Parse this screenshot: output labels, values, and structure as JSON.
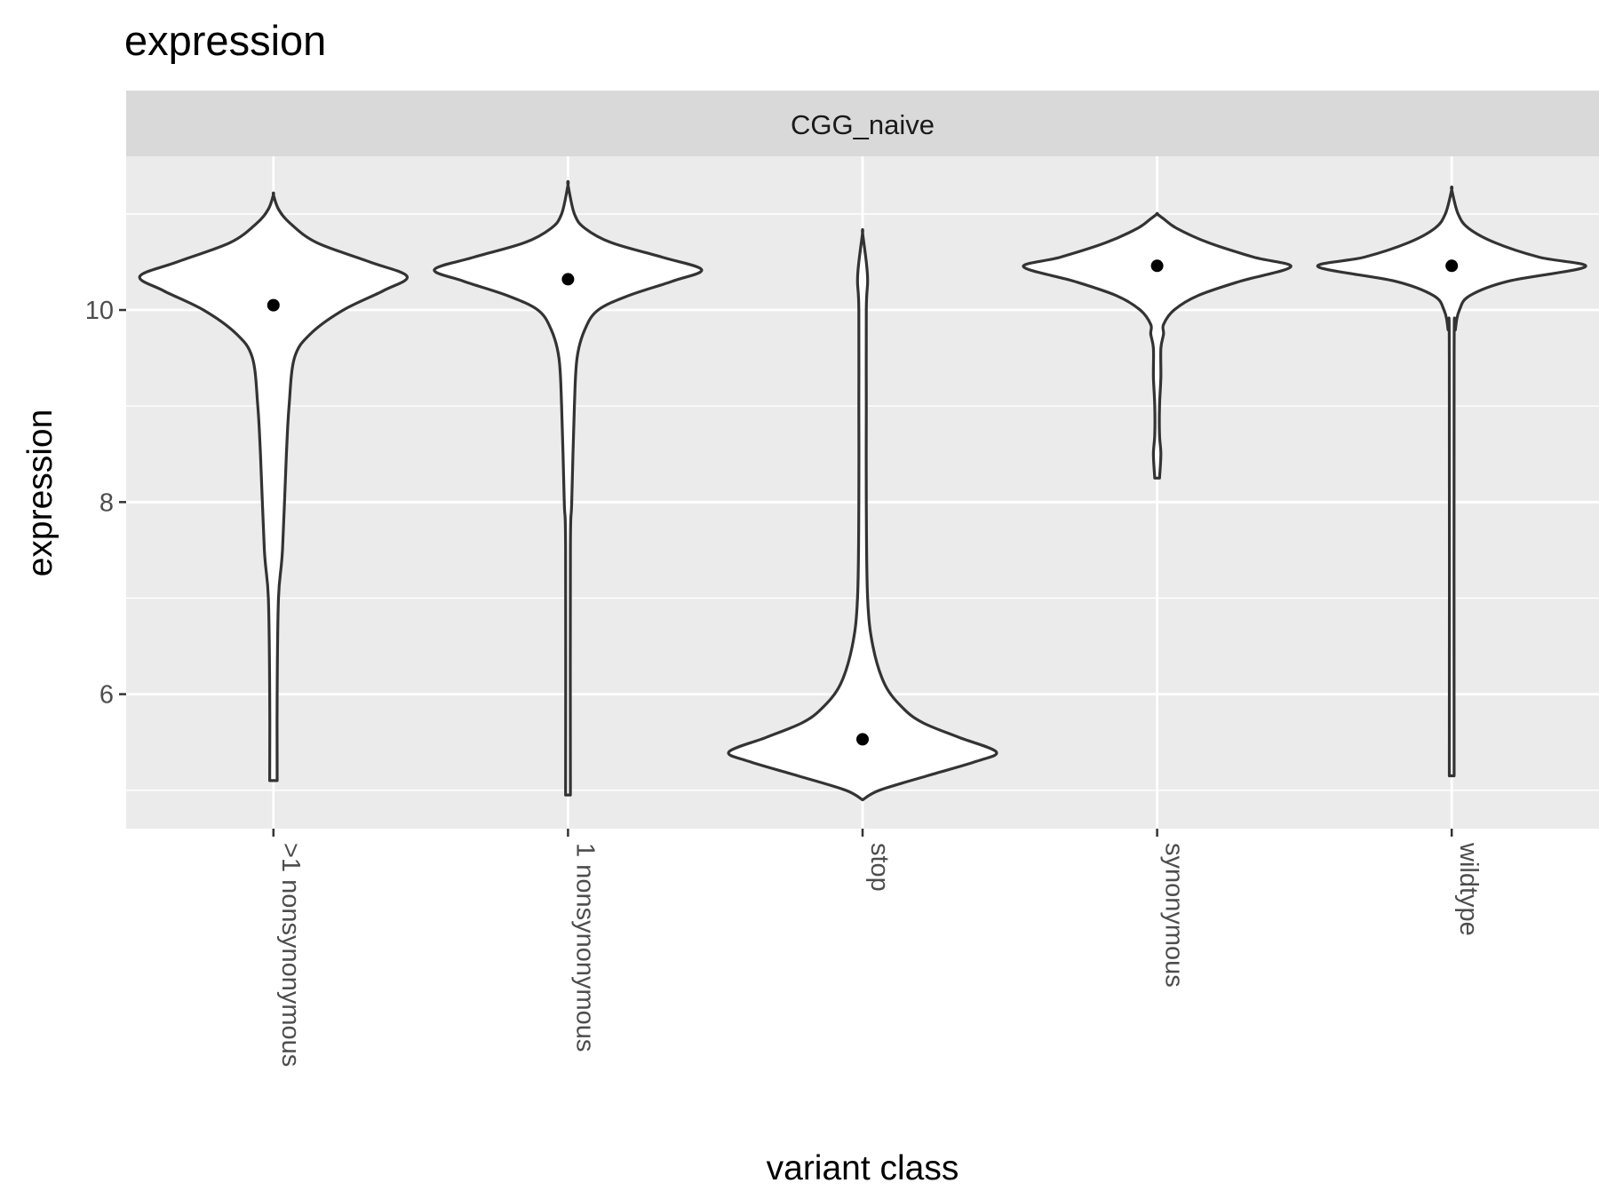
{
  "chart_data": {
    "type": "violin",
    "title": "expression",
    "facet_label": "CGG_naive",
    "xlabel": "variant class",
    "ylabel": "expression",
    "ylim": [
      4.6,
      11.6
    ],
    "y_ticks": [
      6,
      8,
      10
    ],
    "grid": true,
    "colors": {
      "panel": "#EBEBEB",
      "strip": "#D9D9D9",
      "violin_fill": "#FFFFFF",
      "violin_outline": "#333333",
      "point": "#000000"
    },
    "categories": [
      ">1 nonsynonymous",
      "1 nonsynonymous",
      "stop",
      "synonymous",
      "wildtype"
    ],
    "series": [
      {
        "category": ">1 nonsynonymous",
        "center_point": 10.05,
        "y_range": [
          5.1,
          11.2
        ],
        "density_profile": [
          [
            5.1,
            0.02
          ],
          [
            6.0,
            0.02
          ],
          [
            7.0,
            0.03
          ],
          [
            7.5,
            0.06
          ],
          [
            8.5,
            0.09
          ],
          [
            9.0,
            0.11
          ],
          [
            9.5,
            0.15
          ],
          [
            9.75,
            0.27
          ],
          [
            10.0,
            0.52
          ],
          [
            10.2,
            0.82
          ],
          [
            10.35,
            1.0
          ],
          [
            10.5,
            0.72
          ],
          [
            10.7,
            0.32
          ],
          [
            10.9,
            0.12
          ],
          [
            11.05,
            0.03
          ],
          [
            11.2,
            0.0
          ]
        ]
      },
      {
        "category": "1 nonsynonymous",
        "center_point": 10.32,
        "y_range": [
          4.95,
          11.3
        ],
        "density_profile": [
          [
            4.95,
            0.01
          ],
          [
            7.5,
            0.01
          ],
          [
            8.0,
            0.02
          ],
          [
            9.0,
            0.04
          ],
          [
            9.5,
            0.06
          ],
          [
            9.8,
            0.12
          ],
          [
            10.0,
            0.22
          ],
          [
            10.15,
            0.45
          ],
          [
            10.3,
            0.78
          ],
          [
            10.42,
            1.0
          ],
          [
            10.55,
            0.7
          ],
          [
            10.7,
            0.32
          ],
          [
            10.85,
            0.12
          ],
          [
            11.0,
            0.04
          ],
          [
            11.3,
            0.0
          ]
        ]
      },
      {
        "category": "stop",
        "center_point": 5.53,
        "y_range": [
          4.9,
          10.8
        ],
        "density_profile": [
          [
            4.9,
            0.0
          ],
          [
            5.0,
            0.12
          ],
          [
            5.15,
            0.48
          ],
          [
            5.3,
            0.85
          ],
          [
            5.4,
            1.0
          ],
          [
            5.55,
            0.72
          ],
          [
            5.7,
            0.45
          ],
          [
            5.85,
            0.3
          ],
          [
            6.1,
            0.16
          ],
          [
            6.5,
            0.07
          ],
          [
            7.0,
            0.03
          ],
          [
            8.0,
            0.02
          ],
          [
            9.0,
            0.02
          ],
          [
            10.0,
            0.02
          ],
          [
            10.3,
            0.03
          ],
          [
            10.5,
            0.02
          ],
          [
            10.8,
            0.0
          ]
        ]
      },
      {
        "category": "synonymous",
        "center_point": 10.46,
        "y_range": [
          8.25,
          11.0
        ],
        "density_profile": [
          [
            8.25,
            0.01
          ],
          [
            8.5,
            0.02
          ],
          [
            8.7,
            0.01
          ],
          [
            9.0,
            0.01
          ],
          [
            9.3,
            0.02
          ],
          [
            9.6,
            0.02
          ],
          [
            9.75,
            0.04
          ],
          [
            9.85,
            0.04
          ],
          [
            10.0,
            0.12
          ],
          [
            10.15,
            0.3
          ],
          [
            10.3,
            0.62
          ],
          [
            10.45,
            1.0
          ],
          [
            10.55,
            0.72
          ],
          [
            10.7,
            0.38
          ],
          [
            10.85,
            0.14
          ],
          [
            10.95,
            0.04
          ],
          [
            11.0,
            0.0
          ]
        ]
      },
      {
        "category": "wildtype",
        "center_point": 10.46,
        "y_range": [
          5.15,
          11.25
        ],
        "density_profile": [
          [
            5.15,
            0.01
          ],
          [
            9.5,
            0.01
          ],
          [
            9.8,
            0.02
          ],
          [
            10.0,
            0.05
          ],
          [
            10.15,
            0.13
          ],
          [
            10.3,
            0.42
          ],
          [
            10.45,
            1.0
          ],
          [
            10.55,
            0.65
          ],
          [
            10.7,
            0.32
          ],
          [
            10.85,
            0.12
          ],
          [
            11.0,
            0.04
          ],
          [
            11.25,
            0.0
          ]
        ]
      }
    ]
  }
}
